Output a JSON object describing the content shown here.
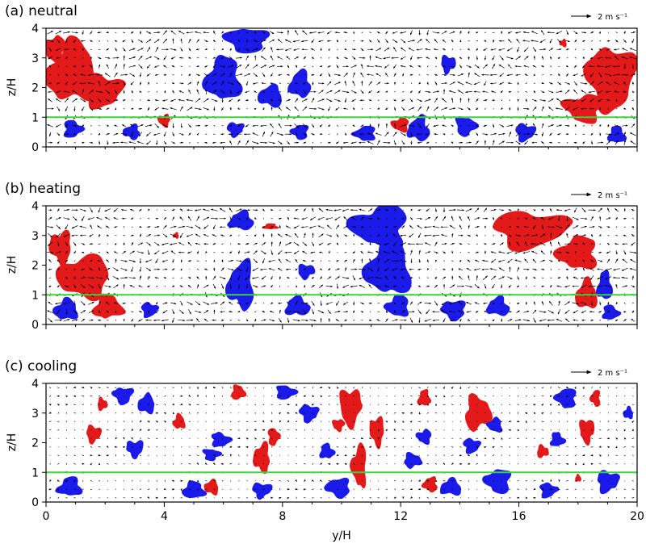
{
  "chart_data": [
    {
      "type": "heatmap",
      "title": "(a) neutral",
      "xlabel": "",
      "ylabel": "z/H",
      "xlim": [
        0,
        20
      ],
      "ylim": [
        0,
        4
      ],
      "yticks": [
        "0",
        "1",
        "2",
        "3",
        "4"
      ],
      "reference_line": {
        "y": 1,
        "color": "#3fd13f"
      },
      "scale_vector_label": "2 m s⁻¹",
      "colors": {
        "positive": "#e41a1a",
        "negative": "#1a1aeb",
        "vectors": "#000000"
      },
      "seed": 11,
      "blobs": [
        {
          "c": "r",
          "x": 0.9,
          "y": 2.5,
          "rx": 1.05,
          "ry": 1.25
        },
        {
          "c": "r",
          "x": 1.9,
          "y": 1.9,
          "rx": 0.8,
          "ry": 0.7
        },
        {
          "c": "r",
          "x": 0.3,
          "y": 3.3,
          "rx": 0.45,
          "ry": 0.55
        },
        {
          "c": "b",
          "x": 0.9,
          "y": 0.6,
          "rx": 0.4,
          "ry": 0.35
        },
        {
          "c": "b",
          "x": 2.9,
          "y": 0.5,
          "rx": 0.35,
          "ry": 0.3
        },
        {
          "c": "r",
          "x": 4.0,
          "y": 0.9,
          "rx": 0.25,
          "ry": 0.25
        },
        {
          "c": "b",
          "x": 6.0,
          "y": 2.3,
          "rx": 0.75,
          "ry": 0.9
        },
        {
          "c": "b",
          "x": 6.8,
          "y": 3.6,
          "rx": 0.9,
          "ry": 0.5
        },
        {
          "c": "b",
          "x": 7.6,
          "y": 1.7,
          "rx": 0.5,
          "ry": 0.45
        },
        {
          "c": "b",
          "x": 8.6,
          "y": 2.1,
          "rx": 0.45,
          "ry": 0.55
        },
        {
          "c": "b",
          "x": 6.4,
          "y": 0.6,
          "rx": 0.35,
          "ry": 0.3
        },
        {
          "c": "b",
          "x": 8.6,
          "y": 0.5,
          "rx": 0.35,
          "ry": 0.3
        },
        {
          "c": "b",
          "x": 10.8,
          "y": 0.45,
          "rx": 0.45,
          "ry": 0.3
        },
        {
          "c": "r",
          "x": 12.0,
          "y": 0.75,
          "rx": 0.35,
          "ry": 0.3
        },
        {
          "c": "b",
          "x": 12.6,
          "y": 0.6,
          "rx": 0.45,
          "ry": 0.5
        },
        {
          "c": "b",
          "x": 13.6,
          "y": 2.8,
          "rx": 0.3,
          "ry": 0.35
        },
        {
          "c": "b",
          "x": 14.2,
          "y": 0.7,
          "rx": 0.45,
          "ry": 0.4
        },
        {
          "c": "b",
          "x": 16.2,
          "y": 0.5,
          "rx": 0.4,
          "ry": 0.35
        },
        {
          "c": "r",
          "x": 19.1,
          "y": 2.3,
          "rx": 1.0,
          "ry": 1.35
        },
        {
          "c": "r",
          "x": 18.2,
          "y": 1.3,
          "rx": 0.8,
          "ry": 0.6
        },
        {
          "c": "b",
          "x": 19.3,
          "y": 0.4,
          "rx": 0.35,
          "ry": 0.35
        },
        {
          "c": "r",
          "x": 17.5,
          "y": 3.5,
          "rx": 0.15,
          "ry": 0.15
        }
      ]
    },
    {
      "type": "heatmap",
      "title": "(b) heating",
      "xlabel": "",
      "ylabel": "z/H",
      "xlim": [
        0,
        20
      ],
      "ylim": [
        0,
        4
      ],
      "yticks": [
        "0",
        "1",
        "2",
        "3",
        "4"
      ],
      "reference_line": {
        "y": 1,
        "color": "#3fd13f"
      },
      "scale_vector_label": "2 m s⁻¹",
      "colors": {
        "positive": "#e41a1a",
        "negative": "#1a1aeb",
        "vectors": "#000000"
      },
      "seed": 23,
      "blobs": [
        {
          "c": "r",
          "x": 1.3,
          "y": 1.6,
          "rx": 1.1,
          "ry": 0.9
        },
        {
          "c": "r",
          "x": 0.5,
          "y": 2.6,
          "rx": 0.45,
          "ry": 0.7
        },
        {
          "c": "r",
          "x": 2.1,
          "y": 0.6,
          "rx": 0.6,
          "ry": 0.5
        },
        {
          "c": "b",
          "x": 0.7,
          "y": 0.5,
          "rx": 0.5,
          "ry": 0.45
        },
        {
          "c": "b",
          "x": 3.5,
          "y": 0.5,
          "rx": 0.35,
          "ry": 0.3
        },
        {
          "c": "b",
          "x": 6.6,
          "y": 1.3,
          "rx": 0.55,
          "ry": 1.0
        },
        {
          "c": "b",
          "x": 6.6,
          "y": 3.5,
          "rx": 0.5,
          "ry": 0.4
        },
        {
          "c": "b",
          "x": 8.8,
          "y": 1.8,
          "rx": 0.35,
          "ry": 0.3
        },
        {
          "c": "b",
          "x": 8.5,
          "y": 0.6,
          "rx": 0.5,
          "ry": 0.4
        },
        {
          "c": "b",
          "x": 11.3,
          "y": 3.3,
          "rx": 1.2,
          "ry": 0.9
        },
        {
          "c": "b",
          "x": 11.6,
          "y": 1.9,
          "rx": 0.9,
          "ry": 1.2
        },
        {
          "c": "b",
          "x": 11.9,
          "y": 0.6,
          "rx": 0.5,
          "ry": 0.45
        },
        {
          "c": "b",
          "x": 13.8,
          "y": 0.5,
          "rx": 0.5,
          "ry": 0.4
        },
        {
          "c": "b",
          "x": 15.3,
          "y": 0.6,
          "rx": 0.45,
          "ry": 0.4
        },
        {
          "c": "r",
          "x": 16.4,
          "y": 3.2,
          "rx": 1.5,
          "ry": 0.8
        },
        {
          "c": "r",
          "x": 18.0,
          "y": 2.4,
          "rx": 0.8,
          "ry": 0.7
        },
        {
          "c": "r",
          "x": 18.3,
          "y": 1.0,
          "rx": 0.45,
          "ry": 0.6
        },
        {
          "c": "b",
          "x": 18.9,
          "y": 1.3,
          "rx": 0.3,
          "ry": 0.6
        },
        {
          "c": "b",
          "x": 19.1,
          "y": 0.4,
          "rx": 0.35,
          "ry": 0.3
        },
        {
          "c": "r",
          "x": 7.6,
          "y": 3.3,
          "rx": 0.3,
          "ry": 0.12
        },
        {
          "c": "r",
          "x": 4.4,
          "y": 3.0,
          "rx": 0.12,
          "ry": 0.12
        }
      ]
    },
    {
      "type": "heatmap",
      "title": "(c) cooling",
      "xlabel": "y/H",
      "ylabel": "z/H",
      "xlim": [
        0,
        20
      ],
      "ylim": [
        0,
        4
      ],
      "xticks": [
        "0",
        "4",
        "8",
        "12",
        "16",
        "20"
      ],
      "yticks": [
        "0",
        "1",
        "2",
        "3",
        "4"
      ],
      "reference_line": {
        "y": 1,
        "color": "#3fd13f"
      },
      "scale_vector_label": "2 m s⁻¹",
      "colors": {
        "positive": "#e41a1a",
        "negative": "#1a1aeb",
        "vectors": "#000000"
      },
      "seed": 37,
      "blobs": [
        {
          "c": "b",
          "x": 0.8,
          "y": 0.5,
          "rx": 0.5,
          "ry": 0.4
        },
        {
          "c": "r",
          "x": 1.6,
          "y": 2.3,
          "rx": 0.3,
          "ry": 0.35
        },
        {
          "c": "r",
          "x": 1.9,
          "y": 3.3,
          "rx": 0.2,
          "ry": 0.25
        },
        {
          "c": "b",
          "x": 2.6,
          "y": 3.6,
          "rx": 0.4,
          "ry": 0.35
        },
        {
          "c": "b",
          "x": 3.4,
          "y": 3.3,
          "rx": 0.35,
          "ry": 0.4
        },
        {
          "c": "b",
          "x": 3.0,
          "y": 1.8,
          "rx": 0.35,
          "ry": 0.35
        },
        {
          "c": "r",
          "x": 4.5,
          "y": 2.7,
          "rx": 0.25,
          "ry": 0.3
        },
        {
          "c": "b",
          "x": 5.0,
          "y": 0.4,
          "rx": 0.45,
          "ry": 0.35
        },
        {
          "c": "r",
          "x": 5.6,
          "y": 0.5,
          "rx": 0.3,
          "ry": 0.3
        },
        {
          "c": "b",
          "x": 5.6,
          "y": 1.6,
          "rx": 0.35,
          "ry": 0.25
        },
        {
          "c": "b",
          "x": 5.9,
          "y": 2.1,
          "rx": 0.4,
          "ry": 0.3
        },
        {
          "c": "r",
          "x": 6.5,
          "y": 3.7,
          "rx": 0.3,
          "ry": 0.3
        },
        {
          "c": "r",
          "x": 7.3,
          "y": 1.5,
          "rx": 0.35,
          "ry": 0.6
        },
        {
          "c": "b",
          "x": 7.3,
          "y": 0.4,
          "rx": 0.4,
          "ry": 0.3
        },
        {
          "c": "r",
          "x": 7.7,
          "y": 2.2,
          "rx": 0.25,
          "ry": 0.35
        },
        {
          "c": "b",
          "x": 8.1,
          "y": 3.7,
          "rx": 0.4,
          "ry": 0.3
        },
        {
          "c": "b",
          "x": 8.9,
          "y": 3.0,
          "rx": 0.4,
          "ry": 0.35
        },
        {
          "c": "b",
          "x": 9.5,
          "y": 1.7,
          "rx": 0.3,
          "ry": 0.3
        },
        {
          "c": "r",
          "x": 9.9,
          "y": 2.6,
          "rx": 0.25,
          "ry": 0.25
        },
        {
          "c": "r",
          "x": 10.3,
          "y": 3.2,
          "rx": 0.45,
          "ry": 0.8
        },
        {
          "c": "r",
          "x": 10.6,
          "y": 1.2,
          "rx": 0.3,
          "ry": 0.9
        },
        {
          "c": "b",
          "x": 9.9,
          "y": 0.5,
          "rx": 0.5,
          "ry": 0.4
        },
        {
          "c": "r",
          "x": 11.2,
          "y": 2.4,
          "rx": 0.3,
          "ry": 0.6
        },
        {
          "c": "b",
          "x": 12.4,
          "y": 1.4,
          "rx": 0.35,
          "ry": 0.3
        },
        {
          "c": "r",
          "x": 12.8,
          "y": 3.5,
          "rx": 0.25,
          "ry": 0.35
        },
        {
          "c": "b",
          "x": 12.8,
          "y": 2.2,
          "rx": 0.3,
          "ry": 0.3
        },
        {
          "c": "b",
          "x": 13.7,
          "y": 0.5,
          "rx": 0.45,
          "ry": 0.35
        },
        {
          "c": "r",
          "x": 13.0,
          "y": 0.6,
          "rx": 0.3,
          "ry": 0.3
        },
        {
          "c": "r",
          "x": 14.6,
          "y": 3.0,
          "rx": 0.55,
          "ry": 0.7
        },
        {
          "c": "b",
          "x": 14.4,
          "y": 1.9,
          "rx": 0.35,
          "ry": 0.3
        },
        {
          "c": "b",
          "x": 15.2,
          "y": 2.6,
          "rx": 0.3,
          "ry": 0.3
        },
        {
          "c": "b",
          "x": 15.3,
          "y": 0.7,
          "rx": 0.55,
          "ry": 0.5
        },
        {
          "c": "r",
          "x": 16.8,
          "y": 1.7,
          "rx": 0.25,
          "ry": 0.25
        },
        {
          "c": "b",
          "x": 17.3,
          "y": 2.1,
          "rx": 0.3,
          "ry": 0.3
        },
        {
          "c": "b",
          "x": 17.6,
          "y": 3.5,
          "rx": 0.45,
          "ry": 0.4
        },
        {
          "c": "b",
          "x": 17.0,
          "y": 0.4,
          "rx": 0.35,
          "ry": 0.3
        },
        {
          "c": "r",
          "x": 18.3,
          "y": 2.4,
          "rx": 0.3,
          "ry": 0.5
        },
        {
          "c": "r",
          "x": 18.6,
          "y": 3.5,
          "rx": 0.2,
          "ry": 0.35
        },
        {
          "c": "b",
          "x": 19.0,
          "y": 0.7,
          "rx": 0.45,
          "ry": 0.45
        },
        {
          "c": "b",
          "x": 19.7,
          "y": 3.0,
          "rx": 0.2,
          "ry": 0.25
        },
        {
          "c": "r",
          "x": 18.0,
          "y": 0.8,
          "rx": 0.12,
          "ry": 0.15
        }
      ]
    }
  ]
}
